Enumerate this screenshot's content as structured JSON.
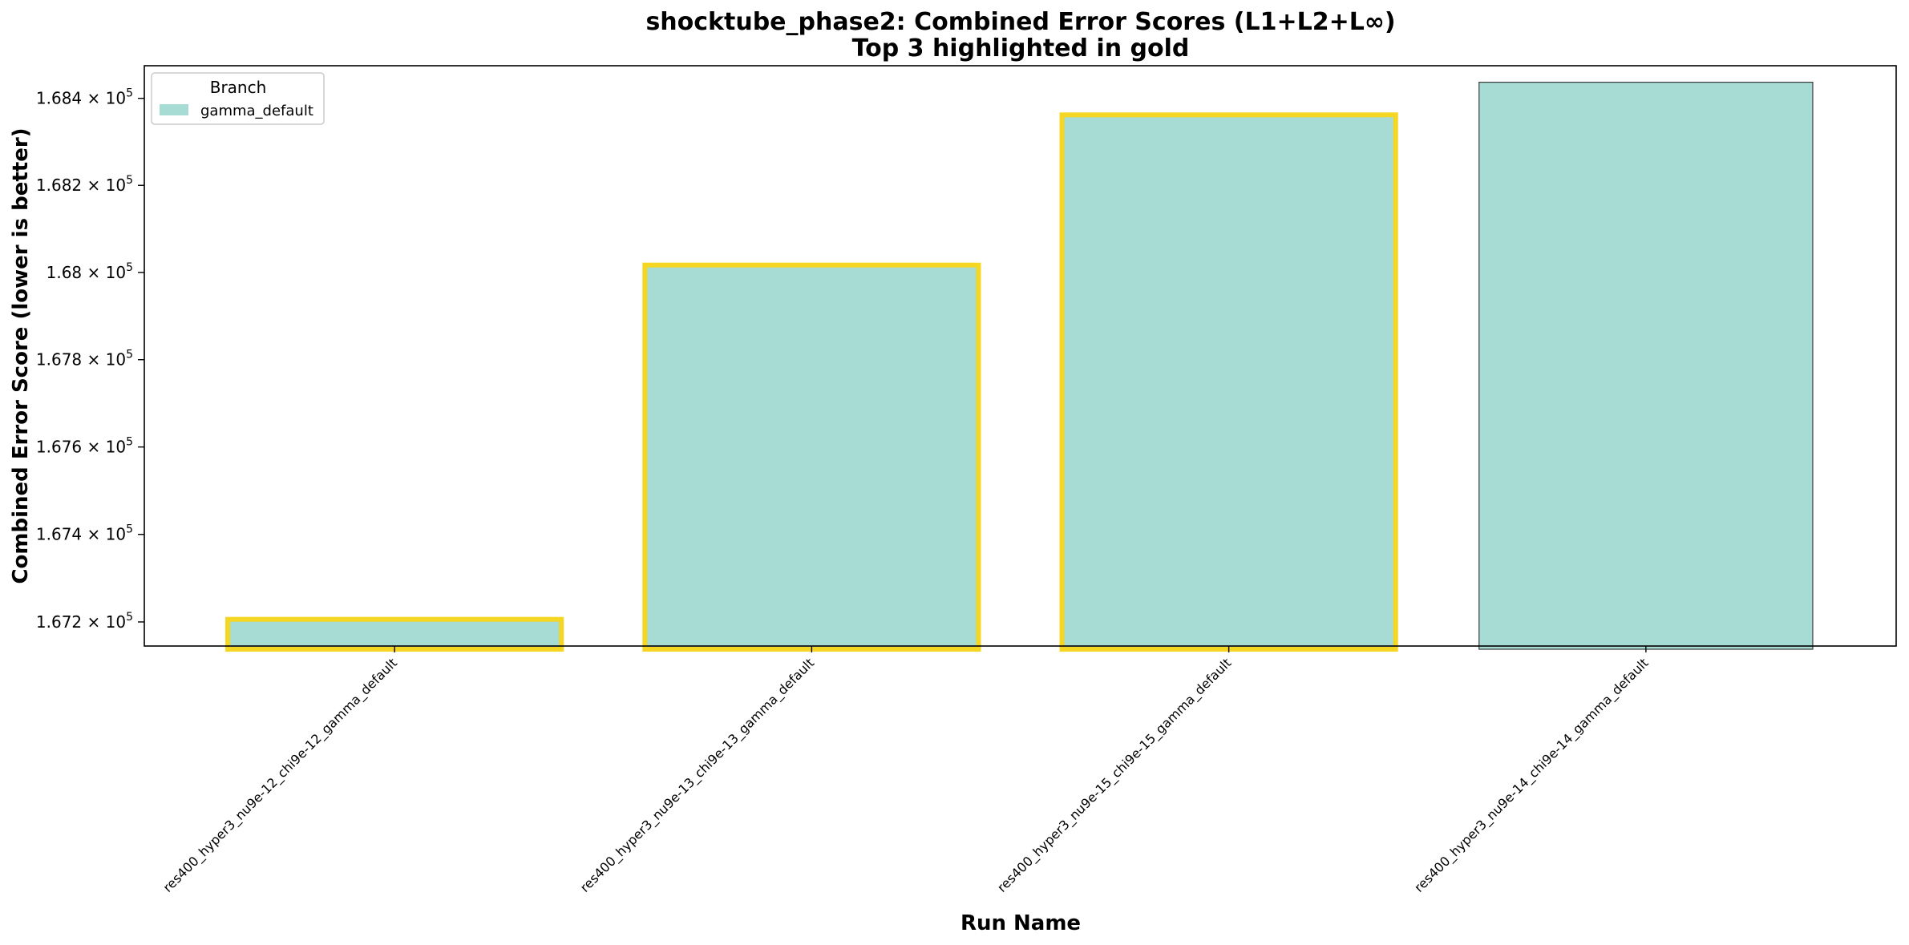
{
  "chart_data": {
    "type": "bar",
    "title": "shocktube_phase2: Combined Error Scores (L1+L2+L∞)",
    "subtitle": "Top 3 highlighted in gold",
    "xlabel": "Run Name",
    "ylabel": "Combined Error Score (lower is better)",
    "categories": [
      "res400_hyper3_nu9e-12_chi9e-12_gamma_default",
      "res400_hyper3_nu9e-13_chi9e-13_gamma_default",
      "res400_hyper3_nu9e-15_chi9e-15_gamma_default",
      "res400_hyper3_nu9e-14_chi9e-14_gamma_default"
    ],
    "series": [
      {
        "name": "gamma_default",
        "values": [
          167206,
          168017,
          168362,
          168437
        ],
        "highlighted": [
          true,
          true,
          true,
          false
        ]
      }
    ],
    "ylim": [
      167145,
      168475
    ],
    "y_scale": "log",
    "y_ticks": [
      {
        "value": 167200,
        "mantissa": "1.672",
        "exp": "5"
      },
      {
        "value": 167400,
        "mantissa": "1.674",
        "exp": "5"
      },
      {
        "value": 167600,
        "mantissa": "1.676",
        "exp": "5"
      },
      {
        "value": 167800,
        "mantissa": "1.678",
        "exp": "5"
      },
      {
        "value": 168000,
        "mantissa": "1.68",
        "exp": "5"
      },
      {
        "value": 168200,
        "mantissa": "1.682",
        "exp": "5"
      },
      {
        "value": 168400,
        "mantissa": "1.684",
        "exp": "5"
      }
    ],
    "legend": {
      "title": "Branch",
      "placement": "top-left"
    },
    "grid": false,
    "colors": {
      "bar": "#a6dcd3",
      "highlight": "#f5d623",
      "edge": "#3a3a3a"
    }
  }
}
